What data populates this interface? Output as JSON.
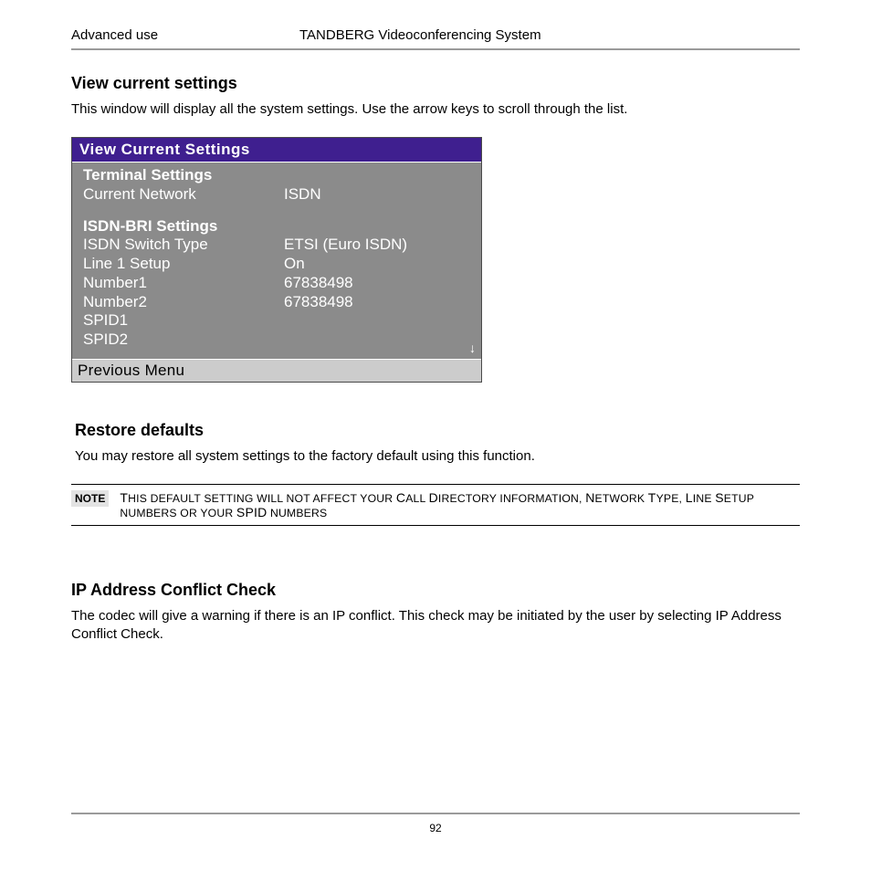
{
  "header": {
    "left": "Advanced use",
    "center": "TANDBERG Videoconferencing System"
  },
  "section1": {
    "title": "View current settings",
    "body": "This window will display all the system settings. Use the arrow keys to scroll through the list."
  },
  "panel": {
    "title": "View Current Settings",
    "group1_heading": "Terminal Settings",
    "r1_label": "Current Network",
    "r1_value": "ISDN",
    "group2_heading": "ISDN-BRI Settings",
    "r2_label": "ISDN Switch Type",
    "r2_value": "ETSI (Euro ISDN)",
    "r3_label": "Line 1 Setup",
    "r3_value": "On",
    "r4_label": "Number1",
    "r4_value": "67838498",
    "r5_label": "Number2",
    "r5_value": "67838498",
    "r6_label": "SPID1",
    "r7_label": "SPID2",
    "footer": "Previous Menu",
    "scroll_arrow": "↓"
  },
  "section2": {
    "title": "Restore defaults",
    "body": "You may restore all system settings to the factory default using this function."
  },
  "note": {
    "label": "NOTE",
    "text_1": "T",
    "text_2": "HIS DEFAULT SETTING WILL NOT AFFECT YOUR ",
    "text_3": "C",
    "text_4": "ALL ",
    "text_5": "D",
    "text_6": "IRECTORY INFORMATION, ",
    "text_7": "N",
    "text_8": "ETWORK ",
    "text_9": "T",
    "text_10": "YPE, ",
    "text_11": "L",
    "text_12": "INE ",
    "text_13": "S",
    "text_14": "ETUP NUMBERS OR YOUR ",
    "text_15": "SPID",
    "text_16": " NUMBERS"
  },
  "section3": {
    "title": "IP Address Conflict Check",
    "body": "The codec will give a warning if there is an IP conflict. This check may be initiated by the user by selecting IP Address Conflict Check."
  },
  "page_number": "92",
  "colors": {
    "panel_title_bg": "#3f1f8f",
    "panel_body_bg": "#8b8b8b",
    "panel_footer_bg": "#cccccc",
    "rule": "#9a9a9a",
    "note_bg": "#e3e3e3"
  }
}
